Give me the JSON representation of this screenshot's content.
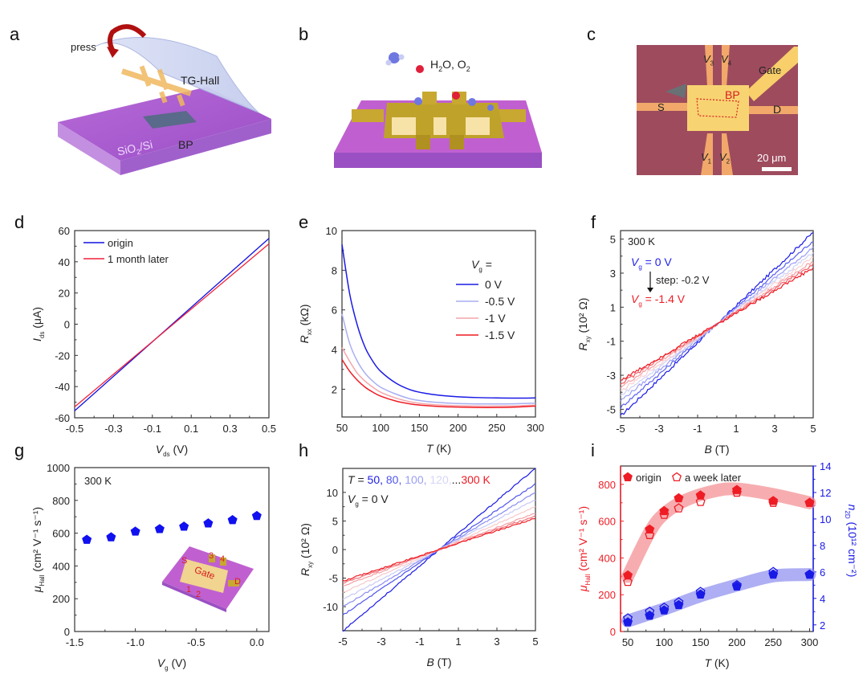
{
  "panel_letters": [
    "a",
    "b",
    "c",
    "d",
    "e",
    "f",
    "g",
    "h",
    "i"
  ],
  "illustrations": {
    "a": {
      "press_label": "press",
      "device_label": "TG-Hall",
      "flake_label": "BP",
      "substrate_label": "SiO",
      "substrate_sub": "2",
      "substrate_suffix": "/Si"
    },
    "b": {
      "molecules_label": "H",
      "mol_sub1": "2",
      "mol_mid": "O, O",
      "mol_sub2": "2"
    },
    "c": {
      "v3": "V",
      "v3_sub": "3",
      "v4": "V",
      "v4_sub": "4",
      "gate": "Gate",
      "bp": "BP",
      "s": "S",
      "d": "D",
      "v1": "V",
      "v1_sub": "1",
      "v2": "V",
      "v2_sub": "2",
      "scale": "20 μm"
    },
    "g_inset": {
      "s": "S",
      "gate": "Gate",
      "d": "D",
      "n1": "1",
      "n2": "2",
      "n3": "3",
      "n4": "4"
    }
  },
  "chart_data": [
    {
      "id": "d",
      "type": "line",
      "title": "",
      "xlabel": "V",
      "xlabel_sub": "ds",
      "xlabel_unit": "(V)",
      "ylabel": "I",
      "ylabel_sub": "ds",
      "ylabel_unit": "(μA)",
      "xlim": [
        -0.5,
        0.5
      ],
      "ylim": [
        -60,
        60
      ],
      "xticks": [
        -0.5,
        -0.3,
        -0.1,
        0.1,
        0.3,
        0.5
      ],
      "yticks": [
        -60,
        -40,
        -20,
        0,
        20,
        40,
        60
      ],
      "legend": "top-left",
      "series": [
        {
          "name": "origin",
          "color": "#1010e0",
          "x": [
            -0.5,
            0.5
          ],
          "y": [
            -55.5,
            55
          ]
        },
        {
          "name": "1 month later",
          "color": "#f0203a",
          "x": [
            -0.5,
            0.5
          ],
          "y": [
            -53,
            51.5
          ]
        }
      ]
    },
    {
      "id": "e",
      "type": "line",
      "xlabel": "T",
      "xlabel_unit": "(K)",
      "ylabel": "R",
      "ylabel_sub": "xx",
      "ylabel_unit": "(kΩ)",
      "xlim": [
        50,
        300
      ],
      "ylim": [
        0.6,
        10
      ],
      "xticks": [
        50,
        100,
        150,
        200,
        250,
        300
      ],
      "yticks": [
        2,
        4,
        6,
        8,
        10
      ],
      "legend_title": "V",
      "legend_title_sub": "g",
      "legend_title_suffix": " =",
      "legend": "right",
      "series": [
        {
          "name": "0 V",
          "color": "#1a1ae6",
          "x": [
            50,
            60,
            70,
            80,
            90,
            100,
            120,
            140,
            160,
            180,
            200,
            225,
            250,
            275,
            300
          ],
          "y": [
            9.3,
            6.8,
            5.2,
            4.1,
            3.4,
            2.9,
            2.3,
            1.95,
            1.78,
            1.68,
            1.62,
            1.58,
            1.56,
            1.55,
            1.56
          ]
        },
        {
          "name": "-0.5 V",
          "color": "#a8aef2",
          "x": [
            50,
            60,
            70,
            80,
            90,
            100,
            120,
            140,
            160,
            180,
            200,
            225,
            250,
            275,
            300
          ],
          "y": [
            5.8,
            4.3,
            3.4,
            2.8,
            2.4,
            2.1,
            1.75,
            1.5,
            1.38,
            1.32,
            1.28,
            1.26,
            1.26,
            1.27,
            1.3
          ]
        },
        {
          "name": "-1 V",
          "color": "#f4a6aa",
          "x": [
            50,
            60,
            70,
            80,
            90,
            100,
            120,
            140,
            160,
            180,
            200,
            225,
            250,
            275,
            300
          ],
          "y": [
            4.1,
            3.4,
            2.8,
            2.4,
            2.1,
            1.85,
            1.55,
            1.35,
            1.25,
            1.2,
            1.17,
            1.15,
            1.15,
            1.16,
            1.2
          ]
        },
        {
          "name": "-1.5 V",
          "color": "#ee1c24",
          "x": [
            50,
            60,
            70,
            80,
            90,
            100,
            120,
            140,
            160,
            180,
            200,
            225,
            250,
            275,
            300
          ],
          "y": [
            3.5,
            2.9,
            2.45,
            2.1,
            1.85,
            1.65,
            1.4,
            1.25,
            1.17,
            1.12,
            1.1,
            1.08,
            1.08,
            1.1,
            1.15
          ]
        }
      ]
    },
    {
      "id": "f",
      "type": "line",
      "xlabel": "B",
      "xlabel_unit": "(T)",
      "ylabel": "R",
      "ylabel_sub": "xy",
      "ylabel_unit": "(10² Ω)",
      "xlim": [
        -5,
        5
      ],
      "ylim": [
        -5.5,
        5.5
      ],
      "xticks": [
        -5,
        -3,
        -1,
        1,
        3,
        5
      ],
      "yticks": [
        -5,
        -3,
        -1,
        1,
        3,
        5
      ],
      "annotations": {
        "temp": "300 K",
        "top": "V",
        "top_sub": "g",
        "top_suffix": " = 0 V",
        "step": "step: -0.2 V",
        "bottom": "V",
        "bottom_sub": "g",
        "bottom_suffix": " = -1.4 V",
        "top_color": "#2222ee",
        "bottom_color": "#ee1c24"
      },
      "series": [
        {
          "name": "Vg = 0 V",
          "color": "#1a1ae6",
          "slope": 1.08
        },
        {
          "name": "Vg = -0.2 V",
          "color": "#5a5ef0",
          "slope": 0.98
        },
        {
          "name": "Vg = -0.4 V",
          "color": "#9a9ef4",
          "slope": 0.9
        },
        {
          "name": "Vg = -0.6 V",
          "color": "#d0d2f8",
          "slope": 0.84
        },
        {
          "name": "Vg = -0.8 V",
          "color": "#f8d0d2",
          "slope": 0.79
        },
        {
          "name": "Vg = -1.0 V",
          "color": "#f4a0a4",
          "slope": 0.74
        },
        {
          "name": "Vg = -1.2 V",
          "color": "#f06068",
          "slope": 0.7
        },
        {
          "name": "Vg = -1.4 V",
          "color": "#ee1c24",
          "slope": 0.66
        }
      ]
    },
    {
      "id": "g",
      "type": "scatter",
      "xlabel": "V",
      "xlabel_sub": "g",
      "xlabel_unit": "(V)",
      "ylabel": "μ",
      "ylabel_sub": "Hall",
      "ylabel_unit": "(cm² V⁻¹ s⁻¹)",
      "xlim": [
        -1.5,
        0.1
      ],
      "ylim": [
        0,
        1000
      ],
      "xticks": [
        -1.5,
        -1.0,
        -0.5,
        0.0
      ],
      "xtick_labels": [
        "-1.5",
        "-1.0",
        "-0.5",
        "0.0"
      ],
      "yticks": [
        0,
        200,
        400,
        600,
        800,
        1000
      ],
      "annotation": "300 K",
      "series": [
        {
          "name": "μHall",
          "color": "#1010f0",
          "marker": "pentagon-filled",
          "x": [
            -1.4,
            -1.2,
            -1.0,
            -0.8,
            -0.6,
            -0.4,
            -0.2,
            0.0
          ],
          "y": [
            560,
            575,
            610,
            625,
            640,
            660,
            680,
            705
          ]
        }
      ]
    },
    {
      "id": "h",
      "type": "line",
      "xlabel": "B",
      "xlabel_unit": "(T)",
      "ylabel": "R",
      "ylabel_sub": "xy",
      "ylabel_unit": "(10² Ω)",
      "xlim": [
        -5,
        5
      ],
      "ylim": [
        -14.2,
        14.2
      ],
      "xticks": [
        -5,
        -3,
        -1,
        1,
        3,
        5
      ],
      "yticks": [
        -10,
        -5,
        0,
        5,
        10
      ],
      "annotations": {
        "t_prefix": "T",
        "t_eq": " = ",
        "t50": "50,",
        "t80": " 80,",
        "t100": " 100,",
        "t120": " 120,",
        "tdots": "...",
        "t300": "300 K",
        "vg": "V",
        "vg_sub": "g",
        "vg_suffix": " = 0 V"
      },
      "series": [
        {
          "name": "T = 50 K",
          "color": "#1a1ae6",
          "slope": 2.85
        },
        {
          "name": "T = 80 K",
          "color": "#5055ec",
          "slope": 2.3
        },
        {
          "name": "T = 100 K",
          "color": "#8a8ef2",
          "slope": 2.0
        },
        {
          "name": "T = 120 K",
          "color": "#c8caf8",
          "slope": 1.75
        },
        {
          "name": "T = 150 K",
          "color": "#f8c8ca",
          "slope": 1.5
        },
        {
          "name": "T = 200 K",
          "color": "#f4a0a4",
          "slope": 1.28
        },
        {
          "name": "T = 250 K",
          "color": "#f07078",
          "slope": 1.18
        },
        {
          "name": "T = 300 K",
          "color": "#ee1c24",
          "slope": 1.1
        }
      ]
    },
    {
      "id": "i",
      "type": "scatter",
      "xlabel": "T",
      "xlabel_unit": "(K)",
      "ylabel": "μ",
      "ylabel_sub": "Hall",
      "ylabel_unit": "(cm² V⁻¹ s⁻¹)",
      "ylabel_right": "n",
      "ylabel_right_sub": "2D",
      "ylabel_right_unit": "(10¹² cm⁻²)",
      "xlim": [
        40,
        305
      ],
      "ylim": [
        0,
        900
      ],
      "ylim_right": [
        1.5,
        14
      ],
      "xticks": [
        50,
        100,
        150,
        200,
        250,
        300
      ],
      "yticks": [
        0,
        200,
        400,
        600,
        800
      ],
      "yticks_right": [
        2,
        4,
        6,
        8,
        10,
        12,
        14
      ],
      "left_color": "#ee1c24",
      "right_color": "#1a1ae6",
      "legend": "top-left",
      "series": [
        {
          "name": "origin",
          "axis": "left",
          "marker": "pentagon-filled",
          "color": "#ee1c24",
          "x": [
            50,
            80,
            100,
            120,
            150,
            200,
            250,
            300
          ],
          "y": [
            305,
            555,
            655,
            725,
            740,
            770,
            710,
            700
          ]
        },
        {
          "name": "a week later",
          "axis": "left",
          "marker": "pentagon-open",
          "color": "#ee1c24",
          "x": [
            50,
            80,
            100,
            120,
            150,
            200,
            250,
            300
          ],
          "y": [
            270,
            525,
            635,
            670,
            705,
            755,
            700,
            700
          ]
        },
        {
          "name": "n2D origin",
          "axis": "right",
          "marker": "pentagon-filled",
          "color": "#1a1ae6",
          "x": [
            50,
            80,
            100,
            120,
            150,
            200,
            250,
            300
          ],
          "y": [
            2.2,
            2.7,
            3.1,
            3.5,
            4.3,
            4.9,
            5.8,
            5.8
          ]
        },
        {
          "name": "n2D a week later",
          "axis": "right",
          "marker": "pentagon-open",
          "color": "#1a1ae6",
          "x": [
            50,
            80,
            100,
            120,
            150,
            200,
            250,
            300
          ],
          "y": [
            2.5,
            3.0,
            3.3,
            3.7,
            4.5,
            5.0,
            6.0,
            5.8
          ]
        }
      ],
      "bands": [
        {
          "axis": "left",
          "color": "#f48a8e",
          "x": [
            50,
            80,
            100,
            130,
            170,
            200,
            250,
            300
          ],
          "y": [
            300,
            540,
            640,
            715,
            765,
            775,
            745,
            700
          ]
        },
        {
          "axis": "right",
          "color": "#8c8cf0",
          "x": [
            50,
            100,
            150,
            200,
            250,
            300
          ],
          "y": [
            2.3,
            3.2,
            4.2,
            5.0,
            5.7,
            5.8
          ]
        }
      ]
    }
  ]
}
